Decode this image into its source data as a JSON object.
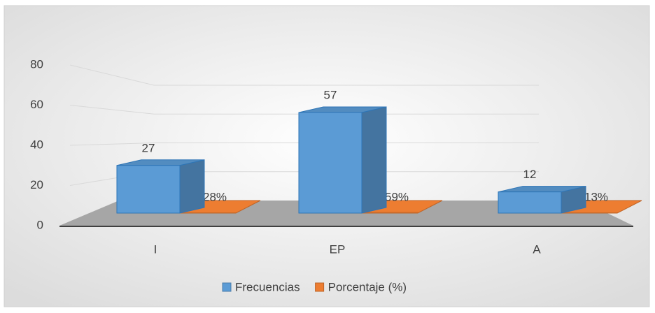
{
  "chart_data": {
    "type": "bar3d",
    "categories": [
      "I",
      "EP",
      "A"
    ],
    "series": [
      {
        "name": "Frecuencias",
        "color": "#5b9bd5",
        "values": [
          27,
          57,
          12
        ]
      },
      {
        "name": "Porcentaje (%)",
        "color": "#ed7d31",
        "values": [
          0.28,
          0.59,
          0.13
        ],
        "value_labels": [
          "28%",
          "59%",
          "13%"
        ]
      }
    ],
    "ylim": [
      0,
      80
    ],
    "yticks": [
      0,
      20,
      40,
      60,
      80
    ],
    "grid": true,
    "legend": "bottom"
  }
}
